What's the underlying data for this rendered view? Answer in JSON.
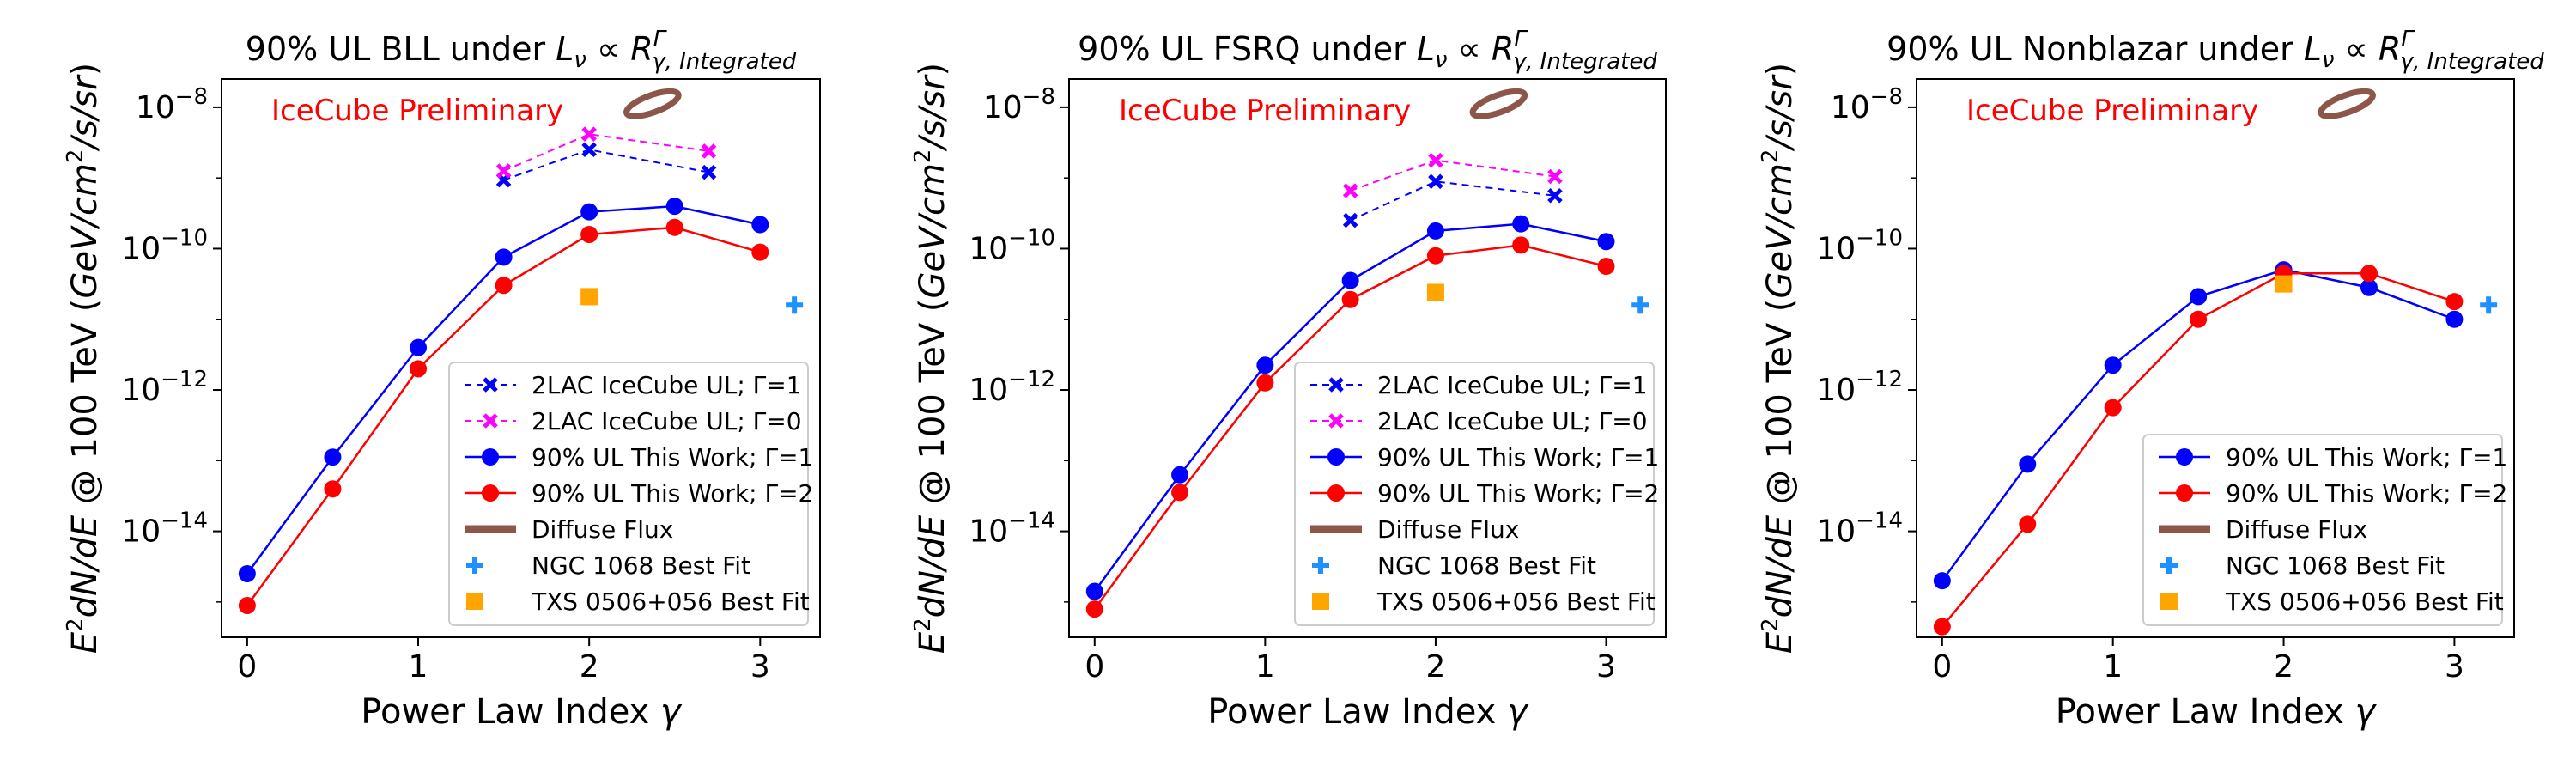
{
  "chart_data": [
    {
      "type": "line",
      "title_prefix": "90% UL BLL under",
      "title_formula": "Lν ∝ Rγ,Integrated^Γ",
      "annotation": "IceCube Preliminary",
      "xlabel": "Power Law Index γ",
      "ylabel": "E²dN/dE @ 100 TeV (GeV/cm²/s/sr)",
      "xlim": [
        -0.15,
        3.35
      ],
      "ylim_log10": [
        -15.5,
        -7.6
      ],
      "x_ticks": [
        0,
        1,
        2,
        3
      ],
      "y_ticks": [
        -14,
        -12,
        -10,
        -8
      ],
      "series": [
        {
          "name": "2LAC IceCube UL; Γ=1",
          "style": "dashed-x",
          "color": "#0000ff",
          "x": [
            1.5,
            2.0,
            2.7
          ],
          "log10y": [
            -9.03,
            -8.6,
            -8.92
          ]
        },
        {
          "name": "2LAC IceCube UL; Γ=0",
          "style": "dashed-x",
          "color": "#ff00ff",
          "x": [
            1.5,
            2.0,
            2.7
          ],
          "log10y": [
            -8.9,
            -8.38,
            -8.62
          ]
        },
        {
          "name": "90% UL This Work; Γ=1",
          "style": "solid-o",
          "color": "#0000ff",
          "x": [
            0,
            0.5,
            1.0,
            1.5,
            2.0,
            2.5,
            3.0
          ],
          "log10y": [
            -14.6,
            -12.95,
            -11.4,
            -10.12,
            -9.48,
            -9.4,
            -9.66
          ]
        },
        {
          "name": "90% UL This Work; Γ=2",
          "style": "solid-o",
          "color": "#ff0000",
          "x": [
            0,
            0.5,
            1.0,
            1.5,
            2.0,
            2.5,
            3.0
          ],
          "log10y": [
            -15.05,
            -13.4,
            -11.7,
            -10.52,
            -9.8,
            -9.7,
            -10.05
          ]
        }
      ],
      "extra_legend": [
        {
          "name": "Diffuse Flux",
          "style": "thick-line",
          "color": "#8c564b"
        },
        {
          "name": "NGC 1068 Best Fit",
          "style": "plus",
          "color": "#1e90ff"
        },
        {
          "name": "TXS 0506+056 Best Fit",
          "style": "square",
          "color": "#ffa500"
        }
      ],
      "points": {
        "ngc1068": {
          "x": 3.2,
          "log10y": -10.8
        },
        "txs0506": {
          "x": 2.0,
          "log10y": -10.68
        },
        "diffuse": {
          "x": 2.37,
          "log10y": -7.95
        }
      },
      "legend_position": "lower-right"
    },
    {
      "type": "line",
      "title_prefix": "90% UL FSRQ under",
      "title_formula": "Lν ∝ Rγ,Integrated^Γ",
      "annotation": "IceCube Preliminary",
      "xlabel": "Power Law Index γ",
      "ylabel": "E²dN/dE @ 100 TeV (GeV/cm²/s/sr)",
      "xlim": [
        -0.15,
        3.35
      ],
      "ylim_log10": [
        -15.5,
        -7.6
      ],
      "x_ticks": [
        0,
        1,
        2,
        3
      ],
      "y_ticks": [
        -14,
        -12,
        -10,
        -8
      ],
      "series": [
        {
          "name": "2LAC IceCube UL; Γ=1",
          "style": "dashed-x",
          "color": "#0000ff",
          "x": [
            1.5,
            2.0,
            2.7
          ],
          "log10y": [
            -9.6,
            -9.05,
            -9.25
          ]
        },
        {
          "name": "2LAC IceCube UL; Γ=0",
          "style": "dashed-x",
          "color": "#ff00ff",
          "x": [
            1.5,
            2.0,
            2.7
          ],
          "log10y": [
            -9.18,
            -8.75,
            -8.98
          ]
        },
        {
          "name": "90% UL This Work; Γ=1",
          "style": "solid-o",
          "color": "#0000ff",
          "x": [
            0,
            0.5,
            1.0,
            1.5,
            2.0,
            2.5,
            3.0
          ],
          "log10y": [
            -14.85,
            -13.2,
            -11.65,
            -10.45,
            -9.75,
            -9.65,
            -9.9
          ]
        },
        {
          "name": "90% UL This Work; Γ=2",
          "style": "solid-o",
          "color": "#ff0000",
          "x": [
            0,
            0.5,
            1.0,
            1.5,
            2.0,
            2.5,
            3.0
          ],
          "log10y": [
            -15.1,
            -13.45,
            -11.9,
            -10.72,
            -10.1,
            -9.95,
            -10.25
          ]
        }
      ],
      "extra_legend": [
        {
          "name": "Diffuse Flux",
          "style": "thick-line",
          "color": "#8c564b"
        },
        {
          "name": "NGC 1068 Best Fit",
          "style": "plus",
          "color": "#1e90ff"
        },
        {
          "name": "TXS 0506+056 Best Fit",
          "style": "square",
          "color": "#ffa500"
        }
      ],
      "points": {
        "ngc1068": {
          "x": 3.2,
          "log10y": -10.8
        },
        "txs0506": {
          "x": 2.0,
          "log10y": -10.62
        },
        "diffuse": {
          "x": 2.37,
          "log10y": -7.95
        }
      },
      "legend_position": "lower-right"
    },
    {
      "type": "line",
      "title_prefix": "90% UL Nonblazar under",
      "title_formula": "Lν ∝ Rγ,Integrated^Γ",
      "annotation": "IceCube Preliminary",
      "xlabel": "Power Law Index γ",
      "ylabel": "E²dN/dE @ 100 TeV (GeV/cm²/s/sr)",
      "xlim": [
        -0.15,
        3.35
      ],
      "ylim_log10": [
        -15.5,
        -7.6
      ],
      "x_ticks": [
        0,
        1,
        2,
        3
      ],
      "y_ticks": [
        -14,
        -12,
        -10,
        -8
      ],
      "series": [
        {
          "name": "90% UL This Work; Γ=1",
          "style": "solid-o",
          "color": "#0000ff",
          "x": [
            0,
            0.5,
            1.0,
            1.5,
            2.0,
            2.5,
            3.0
          ],
          "log10y": [
            -14.7,
            -13.05,
            -11.65,
            -10.68,
            -10.3,
            -10.55,
            -11.0
          ]
        },
        {
          "name": "90% UL This Work; Γ=2",
          "style": "solid-o",
          "color": "#ff0000",
          "x": [
            0,
            0.5,
            1.0,
            1.5,
            2.0,
            2.5,
            3.0
          ],
          "log10y": [
            -15.35,
            -13.9,
            -12.25,
            -11.0,
            -10.35,
            -10.35,
            -10.75
          ]
        }
      ],
      "extra_legend": [
        {
          "name": "Diffuse Flux",
          "style": "thick-line",
          "color": "#8c564b"
        },
        {
          "name": "NGC 1068 Best Fit",
          "style": "plus",
          "color": "#1e90ff"
        },
        {
          "name": "TXS 0506+056 Best Fit",
          "style": "square",
          "color": "#ffa500"
        }
      ],
      "points": {
        "ngc1068": {
          "x": 3.2,
          "log10y": -10.8
        },
        "txs0506": {
          "x": 2.0,
          "log10y": -10.5
        },
        "diffuse": {
          "x": 2.37,
          "log10y": -7.95
        }
      },
      "legend_position": "lower-right"
    }
  ]
}
